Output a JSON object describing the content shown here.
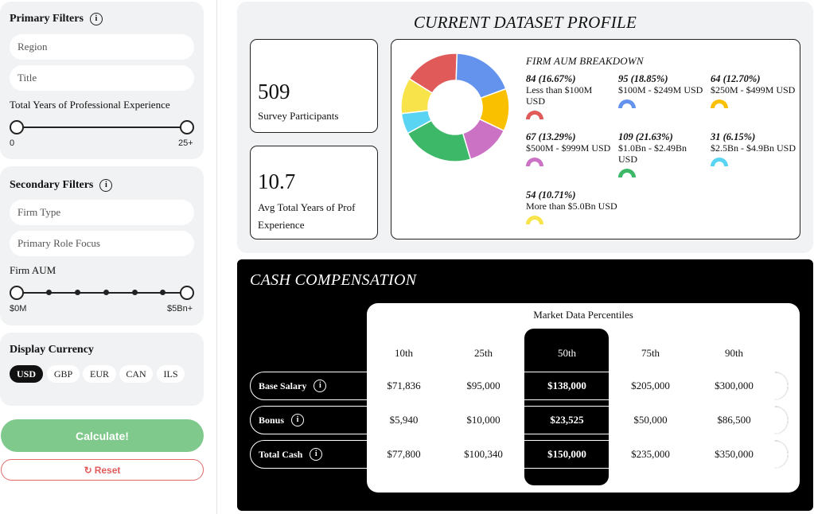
{
  "primary_filters": {
    "title": "Primary Filters",
    "region_placeholder": "Region",
    "title_placeholder": "Title",
    "experience_label": "Total Years of Professional Experience",
    "experience_min": "0",
    "experience_max": "25+"
  },
  "secondary_filters": {
    "title": "Secondary Filters",
    "firm_type_placeholder": "Firm Type",
    "role_focus_placeholder": "Primary Role Focus",
    "aum_label": "Firm AUM",
    "aum_min": "$0M",
    "aum_max": "$5Bn+"
  },
  "display_currency": {
    "title": "Display Currency",
    "options": [
      "USD",
      "GBP",
      "EUR",
      "CAN",
      "ILS"
    ],
    "selected": "USD"
  },
  "actions": {
    "calculate": "Calculate!",
    "reset": "Reset"
  },
  "profile": {
    "title": "CURRENT DATASET PROFILE",
    "participants": {
      "value": "509",
      "label": "Survey Participants"
    },
    "avg_experience": {
      "value": "10.7",
      "label": "Avg Total Years of Prof Experience"
    },
    "aum_breakdown": {
      "title": "FIRM AUM BREAKDOWN",
      "items": [
        {
          "count": "84 (16.67%)",
          "label": "Less than $100M USD",
          "color": "#e05a5a",
          "pct": 16.67
        },
        {
          "count": "95 (18.85%)",
          "label": "$100M - $249M USD",
          "color": "#6493ee",
          "pct": 18.85
        },
        {
          "count": "64 (12.70%)",
          "label": "$250M - $499M USD",
          "color": "#f9c000",
          "pct": 12.7
        },
        {
          "count": "67 (13.29%)",
          "label": "$500M - $999M USD",
          "color": "#cb72c4",
          "pct": 13.29
        },
        {
          "count": "109 (21.63%)",
          "label": "$1.0Bn - $2.49Bn USD",
          "color": "#3db868",
          "pct": 21.63
        },
        {
          "count": "31 (6.15%)",
          "label": "$2.5Bn - $4.9Bn USD",
          "color": "#59d4f2",
          "pct": 6.15
        },
        {
          "count": "54 (10.71%)",
          "label": "More than $5.0Bn USD",
          "color": "#f9e34a",
          "pct": 10.71
        }
      ]
    }
  },
  "compensation": {
    "title": "CASH COMPENSATION",
    "table_title": "Market Data Percentiles",
    "columns": [
      "10th",
      "25th",
      "50th",
      "75th",
      "90th"
    ],
    "rows": [
      {
        "label": "Base Salary",
        "values": [
          "$71,836",
          "$95,000",
          "$138,000",
          "$205,000",
          "$300,000"
        ]
      },
      {
        "label": "Bonus",
        "values": [
          "$5,940",
          "$10,000",
          "$23,525",
          "$50,000",
          "$86,500"
        ]
      },
      {
        "label": "Total Cash",
        "values": [
          "$77,800",
          "$100,340",
          "$150,000",
          "$235,000",
          "$350,000"
        ]
      }
    ]
  }
}
